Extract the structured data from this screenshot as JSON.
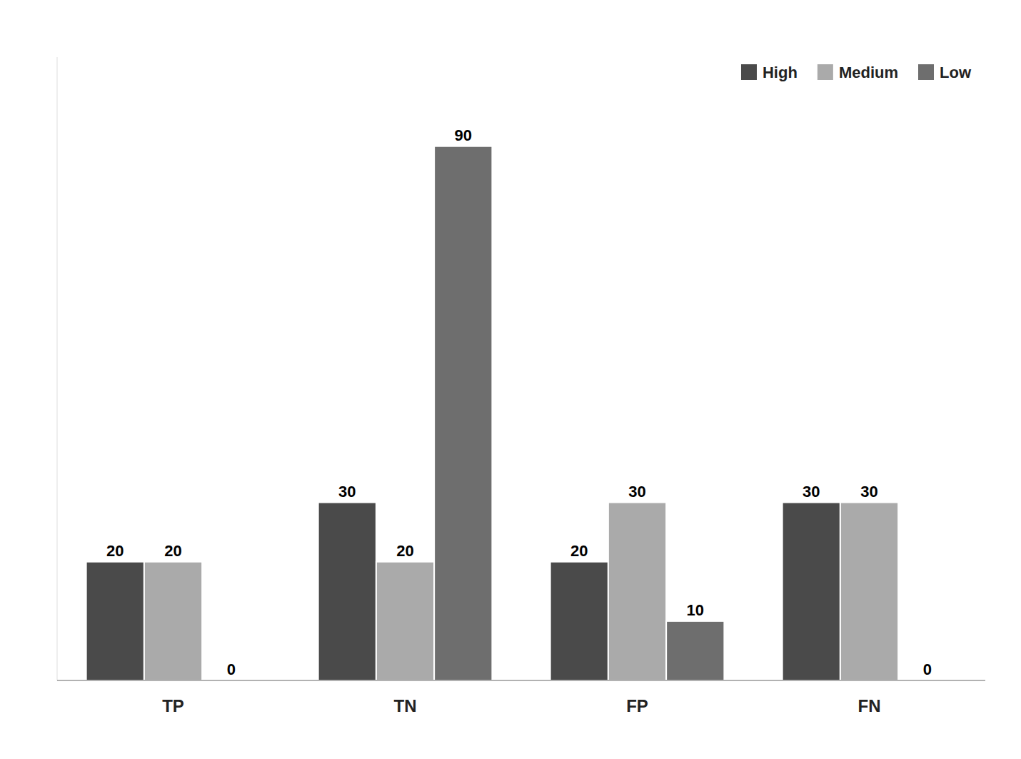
{
  "chart_data": {
    "type": "bar",
    "categories": [
      "TP",
      "TN",
      "FP",
      "FN"
    ],
    "series": [
      {
        "name": "High",
        "color": "#4a4a4a",
        "values": [
          20,
          30,
          20,
          30
        ]
      },
      {
        "name": "Medium",
        "color": "#aaaaaa",
        "values": [
          20,
          20,
          30,
          30
        ]
      },
      {
        "name": "Low",
        "color": "#6e6e6e",
        "values": [
          0,
          90,
          10,
          0
        ]
      }
    ],
    "ylim": [
      0,
      105
    ],
    "grid": false,
    "legend": "upper right",
    "data_labels": true,
    "tick_labels": "x"
  }
}
